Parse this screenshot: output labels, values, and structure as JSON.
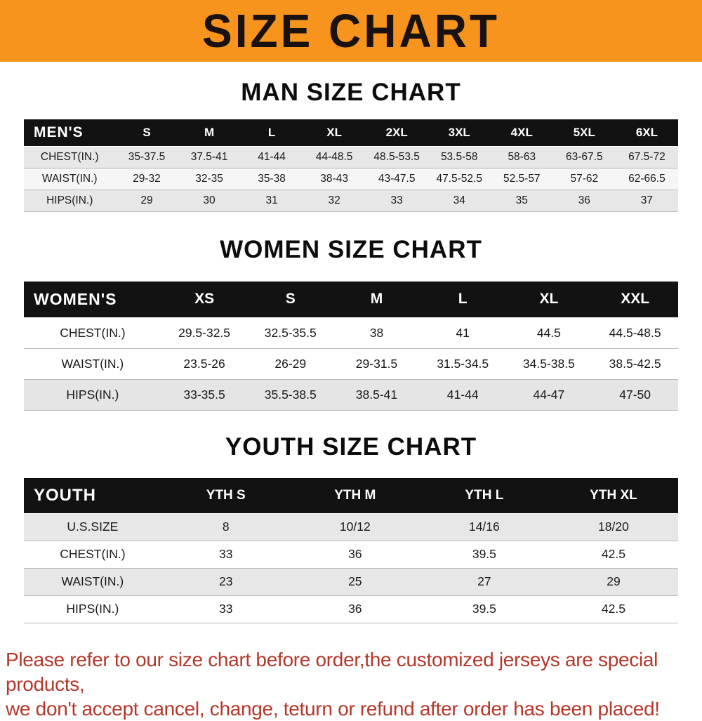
{
  "banner": {
    "title": "SIZE CHART",
    "background_color": "#f7941e",
    "text_color": "#191210"
  },
  "tables": {
    "men": {
      "heading": "MAN SIZE CHART",
      "header": [
        "MEN'S",
        "S",
        "M",
        "L",
        "XL",
        "2XL",
        "3XL",
        "4XL",
        "5XL",
        "6XL"
      ],
      "rows": [
        [
          "CHEST(IN.)",
          "35-37.5",
          "37.5-41",
          "41-44",
          "44-48.5",
          "48.5-53.5",
          "53.5-58",
          "58-63",
          "63-67.5",
          "67.5-72"
        ],
        [
          "WAIST(IN.)",
          "29-32",
          "32-35",
          "35-38",
          "38-43",
          "43-47.5",
          "47.5-52.5",
          "52.5-57",
          "57-62",
          "62-66.5"
        ],
        [
          "HIPS(IN.)",
          "29",
          "30",
          "31",
          "32",
          "33",
          "34",
          "35",
          "36",
          "37"
        ]
      ]
    },
    "women": {
      "heading": "WOMEN SIZE CHART",
      "header": [
        "WOMEN'S",
        "XS",
        "S",
        "M",
        "L",
        "XL",
        "XXL"
      ],
      "rows": [
        [
          "CHEST(IN.)",
          "29.5-32.5",
          "32.5-35.5",
          "38",
          "41",
          "44.5",
          "44.5-48.5"
        ],
        [
          "WAIST(IN.)",
          "23.5-26",
          "26-29",
          "29-31.5",
          "31.5-34.5",
          "34.5-38.5",
          "38.5-42.5"
        ],
        [
          "HIPS(IN.)",
          "33-35.5",
          "35.5-38.5",
          "38.5-41",
          "41-44",
          "44-47",
          "47-50"
        ]
      ]
    },
    "youth": {
      "heading": "YOUTH SIZE CHART",
      "header": [
        "YOUTH",
        "YTH S",
        "YTH M",
        "YTH L",
        "YTH XL"
      ],
      "rows": [
        [
          "U.S.SIZE",
          "8",
          "10/12",
          "14/16",
          "18/20"
        ],
        [
          "CHEST(IN.)",
          "33",
          "36",
          "39.5",
          "42.5"
        ],
        [
          "WAIST(IN.)",
          "23",
          "25",
          "27",
          "29"
        ],
        [
          "HIPS(IN.)",
          "33",
          "36",
          "39.5",
          "42.5"
        ]
      ]
    }
  },
  "footer_note": {
    "line1": "Please refer to our size chart before order,the customized jerseys are special products,",
    "line2": "we don't accept cancel, change, teturn or refund after order has been placed!",
    "text_color": "#b5372a"
  },
  "colors": {
    "table_header_background": "#121212",
    "table_header_text": "#ffffff",
    "row_stripe_gray": "#e7e7e7",
    "row_border": "#b9b9b9"
  }
}
